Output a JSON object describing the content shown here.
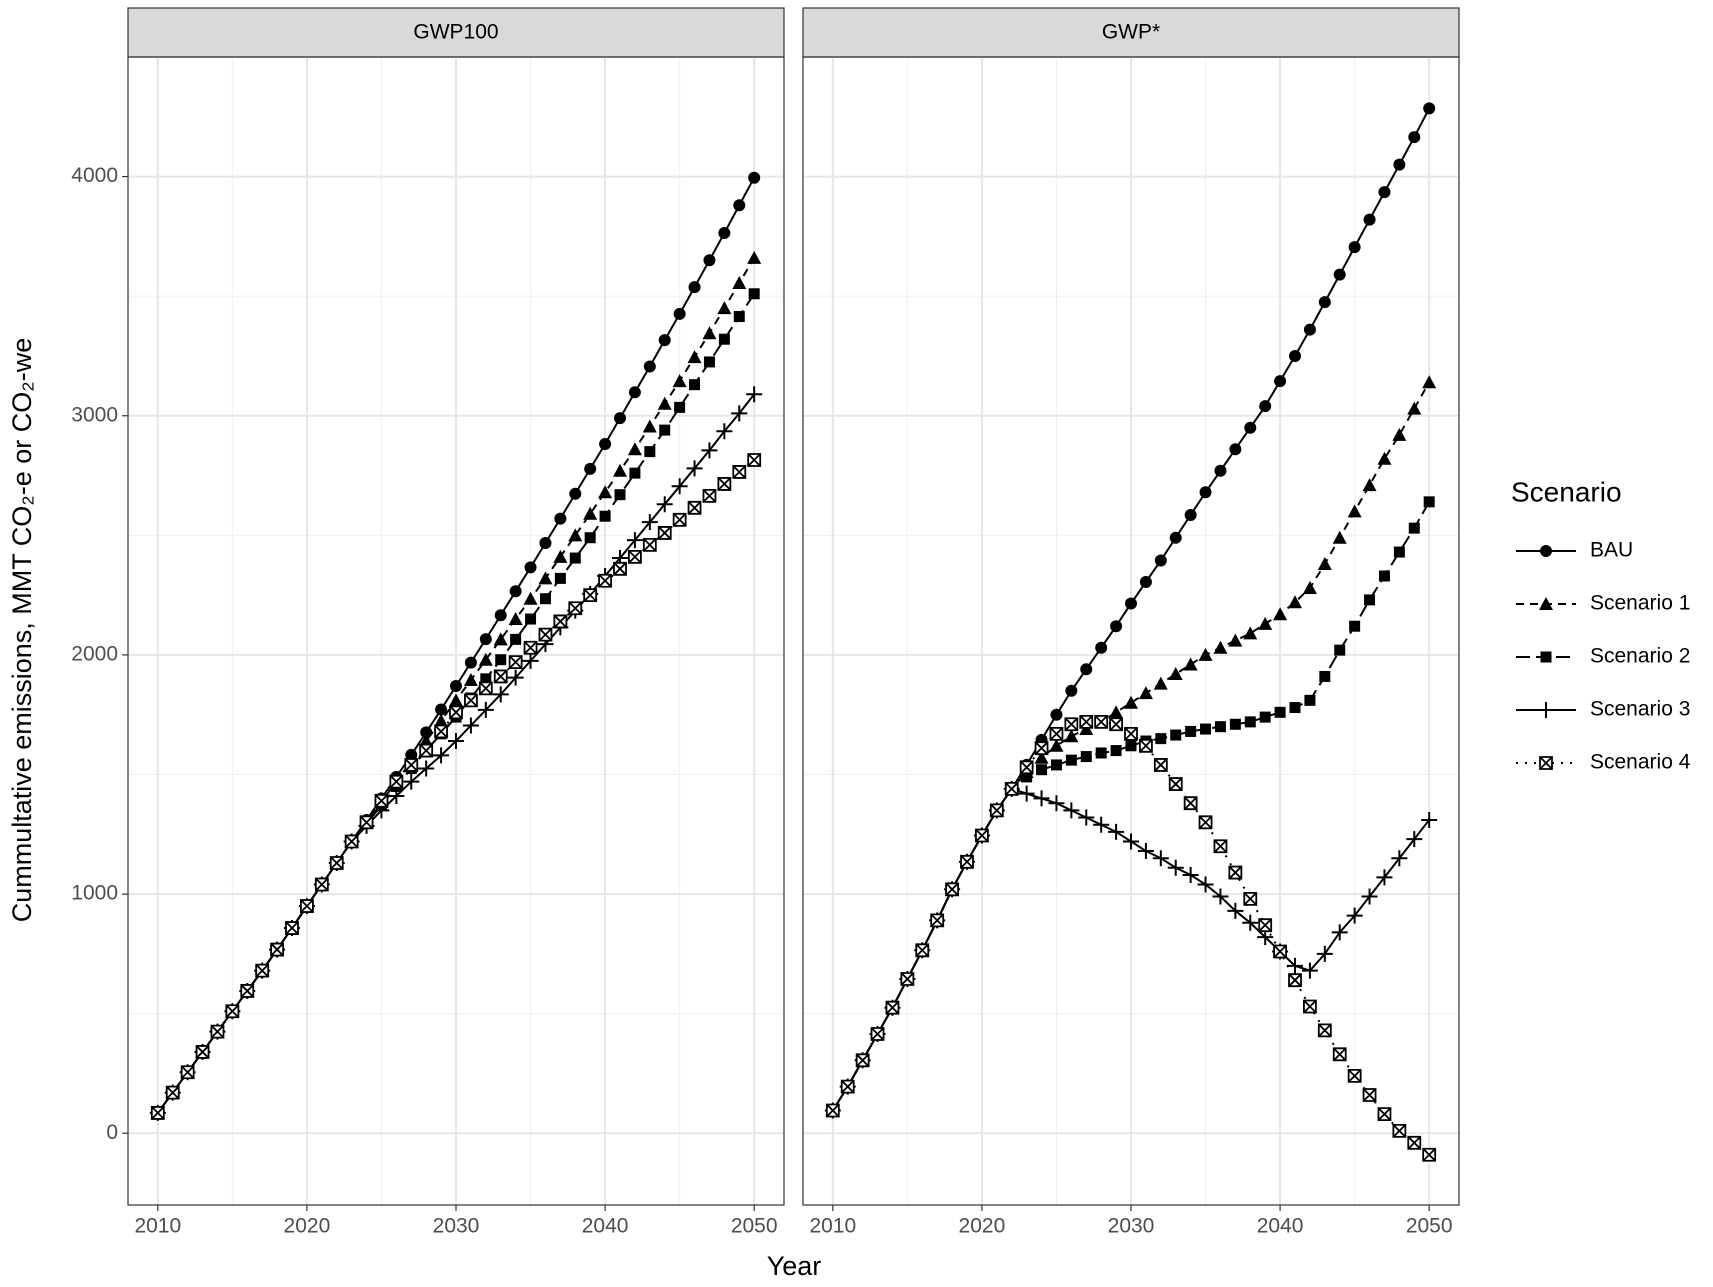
{
  "shared": {
    "x_label": "Year",
    "y_label": "Cummultative emissions, MMT CO₂-e or CO₂-we",
    "legend_title": "Scenario"
  },
  "chart_data": [
    {
      "type": "line",
      "title": "GWP100",
      "x": [
        2010,
        2011,
        2012,
        2013,
        2014,
        2015,
        2016,
        2017,
        2018,
        2019,
        2020,
        2021,
        2022,
        2023,
        2024,
        2025,
        2026,
        2027,
        2028,
        2029,
        2030,
        2031,
        2032,
        2033,
        2034,
        2035,
        2036,
        2037,
        2038,
        2039,
        2040,
        2041,
        2042,
        2043,
        2044,
        2045,
        2046,
        2047,
        2048,
        2049,
        2050
      ],
      "xlim": [
        2008,
        2052
      ],
      "xticks": [
        2010,
        2020,
        2030,
        2040,
        2050
      ],
      "ylim": [
        -300,
        4500
      ],
      "yticks": [
        0,
        1000,
        2000,
        3000,
        4000
      ],
      "grid": true,
      "series": [
        {
          "name": "BAU",
          "color": "#000000",
          "marker": "circle",
          "dash": "solid",
          "values": [
            85,
            170,
            255,
            340,
            425,
            510,
            595,
            680,
            768,
            858,
            950,
            1040,
            1130,
            1220,
            1310,
            1400,
            1490,
            1582,
            1676,
            1772,
            1870,
            1968,
            2066,
            2166,
            2266,
            2366,
            2468,
            2570,
            2674,
            2778,
            2882,
            2990,
            3098,
            3206,
            3316,
            3426,
            3538,
            3650,
            3764,
            3880,
            3995
          ]
        },
        {
          "name": "Scenario 1",
          "color": "#000000",
          "marker": "triangle",
          "dash": "dashed",
          "values": [
            85,
            170,
            255,
            340,
            425,
            510,
            595,
            680,
            768,
            858,
            950,
            1040,
            1130,
            1220,
            1300,
            1385,
            1470,
            1555,
            1640,
            1725,
            1810,
            1895,
            1980,
            2065,
            2150,
            2235,
            2320,
            2410,
            2500,
            2590,
            2680,
            2770,
            2860,
            2955,
            3050,
            3145,
            3245,
            3345,
            3450,
            3555,
            3660
          ]
        },
        {
          "name": "Scenario 2",
          "color": "#000000",
          "marker": "square",
          "dash": "longdash",
          "values": [
            85,
            170,
            255,
            340,
            425,
            510,
            595,
            680,
            768,
            858,
            950,
            1040,
            1130,
            1220,
            1295,
            1370,
            1450,
            1525,
            1600,
            1670,
            1740,
            1820,
            1900,
            1980,
            2065,
            2150,
            2235,
            2320,
            2405,
            2490,
            2580,
            2670,
            2760,
            2850,
            2940,
            3035,
            3130,
            3225,
            3320,
            3415,
            3510
          ]
        },
        {
          "name": "Scenario 3",
          "color": "#000000",
          "marker": "plus",
          "dash": "solid",
          "values": [
            85,
            170,
            255,
            340,
            425,
            510,
            595,
            680,
            768,
            858,
            950,
            1040,
            1130,
            1220,
            1285,
            1350,
            1410,
            1470,
            1525,
            1580,
            1640,
            1705,
            1770,
            1835,
            1905,
            1975,
            2045,
            2115,
            2185,
            2255,
            2330,
            2405,
            2480,
            2555,
            2630,
            2705,
            2780,
            2855,
            2935,
            3010,
            3090
          ]
        },
        {
          "name": "Scenario 4",
          "color": "#000000",
          "marker": "boxx",
          "dash": "dotted",
          "values": [
            85,
            170,
            255,
            340,
            425,
            510,
            595,
            680,
            768,
            858,
            950,
            1040,
            1130,
            1220,
            1300,
            1390,
            1470,
            1540,
            1600,
            1680,
            1760,
            1810,
            1860,
            1910,
            1970,
            2030,
            2085,
            2140,
            2195,
            2250,
            2310,
            2360,
            2410,
            2460,
            2510,
            2565,
            2615,
            2665,
            2715,
            2765,
            2815
          ]
        }
      ]
    },
    {
      "type": "line",
      "title": "GWP*",
      "x": [
        2010,
        2011,
        2012,
        2013,
        2014,
        2015,
        2016,
        2017,
        2018,
        2019,
        2020,
        2021,
        2022,
        2023,
        2024,
        2025,
        2026,
        2027,
        2028,
        2029,
        2030,
        2031,
        2032,
        2033,
        2034,
        2035,
        2036,
        2037,
        2038,
        2039,
        2040,
        2041,
        2042,
        2043,
        2044,
        2045,
        2046,
        2047,
        2048,
        2049,
        2050
      ],
      "xlim": [
        2008,
        2052
      ],
      "xticks": [
        2010,
        2020,
        2030,
        2040,
        2050
      ],
      "ylim": [
        -300,
        4500
      ],
      "yticks": [
        0,
        1000,
        2000,
        3000,
        4000
      ],
      "grid": true,
      "series": [
        {
          "name": "BAU",
          "color": "#000000",
          "marker": "circle",
          "dash": "solid",
          "values": [
            95,
            195,
            305,
            415,
            525,
            645,
            765,
            890,
            1020,
            1135,
            1245,
            1350,
            1440,
            1540,
            1645,
            1750,
            1850,
            1940,
            2030,
            2120,
            2215,
            2305,
            2395,
            2490,
            2585,
            2680,
            2770,
            2860,
            2950,
            3040,
            3145,
            3250,
            3360,
            3475,
            3590,
            3705,
            3820,
            3935,
            4050,
            4165,
            4285
          ]
        },
        {
          "name": "Scenario 1",
          "color": "#000000",
          "marker": "triangle",
          "dash": "dashed",
          "values": [
            95,
            195,
            305,
            415,
            525,
            645,
            765,
            890,
            1020,
            1135,
            1245,
            1350,
            1440,
            1510,
            1570,
            1620,
            1660,
            1690,
            1720,
            1760,
            1800,
            1840,
            1880,
            1920,
            1960,
            2000,
            2030,
            2060,
            2090,
            2130,
            2170,
            2220,
            2280,
            2380,
            2490,
            2600,
            2710,
            2820,
            2920,
            3030,
            3140
          ]
        },
        {
          "name": "Scenario 2",
          "color": "#000000",
          "marker": "square",
          "dash": "longdash",
          "values": [
            95,
            195,
            305,
            415,
            525,
            645,
            765,
            890,
            1020,
            1135,
            1245,
            1350,
            1440,
            1490,
            1520,
            1540,
            1560,
            1575,
            1590,
            1600,
            1620,
            1640,
            1650,
            1665,
            1680,
            1690,
            1700,
            1710,
            1720,
            1740,
            1760,
            1780,
            1810,
            1910,
            2020,
            2120,
            2230,
            2330,
            2430,
            2530,
            2640
          ]
        },
        {
          "name": "Scenario 3",
          "color": "#000000",
          "marker": "plus",
          "dash": "solid",
          "values": [
            95,
            195,
            305,
            415,
            525,
            645,
            765,
            890,
            1020,
            1135,
            1245,
            1350,
            1440,
            1420,
            1400,
            1380,
            1350,
            1320,
            1290,
            1260,
            1220,
            1180,
            1150,
            1110,
            1080,
            1040,
            990,
            930,
            880,
            820,
            760,
            700,
            680,
            750,
            840,
            910,
            990,
            1070,
            1150,
            1230,
            1310
          ]
        },
        {
          "name": "Scenario 4",
          "color": "#000000",
          "marker": "boxx",
          "dash": "dotted",
          "values": [
            95,
            195,
            305,
            415,
            525,
            645,
            765,
            890,
            1020,
            1135,
            1245,
            1350,
            1440,
            1530,
            1610,
            1670,
            1710,
            1720,
            1720,
            1710,
            1670,
            1620,
            1540,
            1460,
            1380,
            1300,
            1200,
            1090,
            980,
            870,
            760,
            640,
            530,
            430,
            330,
            240,
            160,
            80,
            10,
            -40,
            -90
          ]
        }
      ]
    }
  ]
}
